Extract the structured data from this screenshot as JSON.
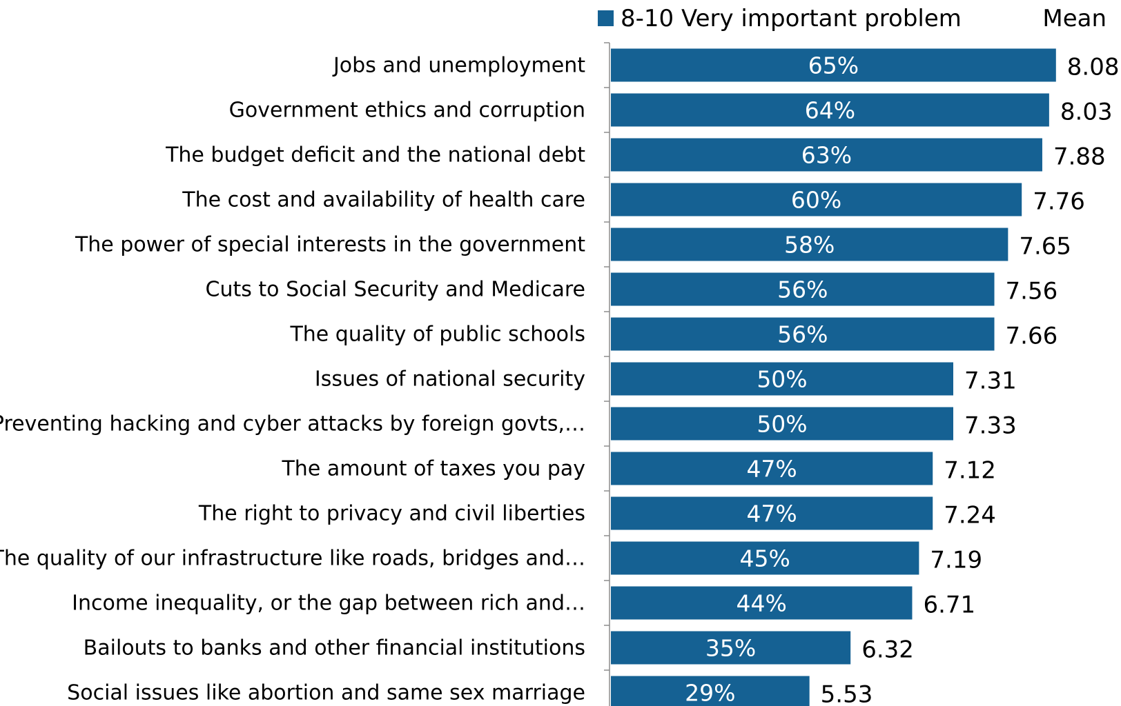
{
  "chart_data": {
    "type": "bar",
    "orientation": "horizontal",
    "title": "",
    "xlabel": "",
    "ylabel": "",
    "xlim": [
      0,
      65
    ],
    "grid": false,
    "legend_position": "top-right",
    "bar_color": "#156193",
    "mean_header": "Mean",
    "categories": [
      "Jobs and unemployment",
      "Government ethics and corruption",
      "The budget deficit and the national debt",
      "The cost and availability of health care",
      "The power of special interests in the government",
      "Cuts to Social Security and Medicare",
      "The quality of public schools",
      "Issues of national security",
      "Preventing hacking and cyber attacks by foreign govts,…",
      "The amount of taxes you pay",
      "The right to privacy and civil liberties",
      "The quality of our infrastructure like roads, bridges and…",
      "Income inequality, or the gap between rich and…",
      "Bailouts to banks and other financial institutions",
      "Social issues like abortion and same sex marriage"
    ],
    "series": [
      {
        "name": "8-10 Very important problem",
        "values": [
          65,
          64,
          63,
          60,
          58,
          56,
          56,
          50,
          50,
          47,
          47,
          45,
          44,
          35,
          29
        ],
        "labels": [
          "65%",
          "64%",
          "63%",
          "60%",
          "58%",
          "56%",
          "56%",
          "50%",
          "50%",
          "47%",
          "47%",
          "45%",
          "44%",
          "35%",
          "29%"
        ]
      }
    ],
    "means": [
      "8.08",
      "8.03",
      "7.88",
      "7.76",
      "7.65",
      "7.56",
      "7.66",
      "7.31",
      "7.33",
      "7.12",
      "7.24",
      "7.19",
      "6.71",
      "6.32",
      "5.53"
    ]
  }
}
